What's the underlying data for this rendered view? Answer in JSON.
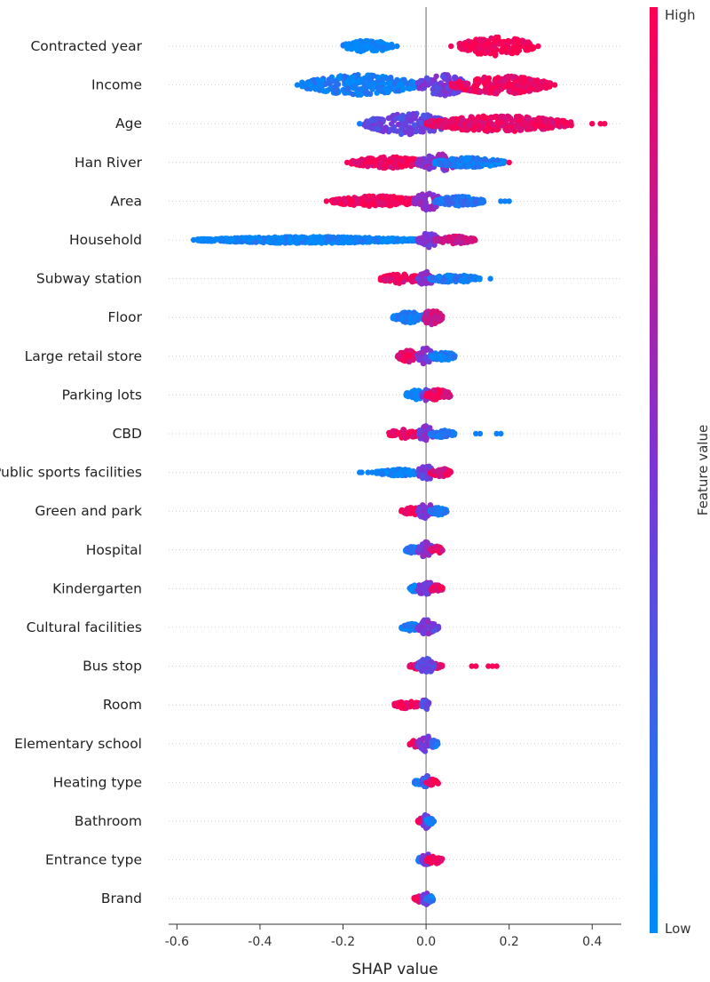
{
  "chart_data": {
    "type": "scatter",
    "title": "",
    "xlabel": "SHAP value",
    "ylabel": "",
    "xlim": [
      -0.62,
      0.47
    ],
    "x_ticks": [
      -0.6,
      -0.4,
      -0.2,
      0.0,
      0.2,
      0.4
    ],
    "x_tick_labels": [
      "-0.6",
      "-0.4",
      "-0.2",
      "0.0",
      "0.2",
      "0.4"
    ],
    "grid": false,
    "colorbar": {
      "label": "Feature value",
      "high_label": "High",
      "low_label": "Low",
      "high_color": "#ff0051",
      "low_color": "#008bfb"
    },
    "features": [
      {
        "name": "Contracted year",
        "segments": [
          [
            -0.2,
            -0.08,
            0.0,
            0.55
          ],
          [
            0.08,
            0.26,
            1.0,
            0.9
          ]
        ],
        "outliers_low": [
          -0.07
        ],
        "outliers_high": [
          0.06,
          0.27
        ]
      },
      {
        "name": "Income",
        "segments": [
          [
            -0.3,
            -0.02,
            0.08,
            0.95
          ],
          [
            -0.02,
            0.1,
            0.45,
            1.0
          ],
          [
            0.06,
            0.3,
            0.95,
            0.85
          ]
        ],
        "outliers_low": [
          -0.31,
          -0.29
        ],
        "outliers_high": [
          0.31
        ]
      },
      {
        "name": "Age",
        "segments": [
          [
            -0.15,
            0.06,
            0.4,
            1.0
          ],
          [
            0.0,
            0.35,
            0.92,
            0.75
          ]
        ],
        "outliers_low": [
          -0.16
        ],
        "outliers_high": [
          0.4,
          0.42,
          0.43
        ]
      },
      {
        "name": "Han River",
        "segments": [
          [
            -0.18,
            0.0,
            0.95,
            0.55
          ],
          [
            -0.02,
            0.08,
            0.55,
            0.8
          ],
          [
            0.02,
            0.19,
            0.08,
            0.45
          ]
        ],
        "outliers_low": [],
        "outliers_high": [
          -0.19,
          0.2
        ]
      },
      {
        "name": "Area",
        "segments": [
          [
            -0.23,
            -0.01,
            0.97,
            0.5
          ],
          [
            -0.03,
            0.04,
            0.6,
            0.85
          ],
          [
            0.02,
            0.14,
            0.15,
            0.45
          ]
        ],
        "outliers_low": [
          0.18,
          0.19,
          0.2
        ],
        "outliers_high": [
          -0.24
        ]
      },
      {
        "name": "Household",
        "segments": [
          [
            -0.55,
            -0.02,
            0.02,
            0.3
          ],
          [
            -0.02,
            0.03,
            0.5,
            0.7
          ],
          [
            0.02,
            0.12,
            0.8,
            0.35
          ]
        ],
        "outliers_low": [
          -0.56,
          -0.55,
          -0.53,
          -0.52
        ],
        "outliers_high": []
      },
      {
        "name": "Subway station",
        "segments": [
          [
            -0.11,
            -0.01,
            0.92,
            0.45
          ],
          [
            -0.02,
            0.02,
            0.5,
            0.7
          ],
          [
            0.01,
            0.13,
            0.1,
            0.35
          ]
        ],
        "outliers_low": [
          0.155
        ],
        "outliers_high": []
      },
      {
        "name": "Floor",
        "segments": [
          [
            -0.08,
            0.0,
            0.05,
            0.5
          ],
          [
            -0.01,
            0.04,
            0.8,
            0.7
          ]
        ],
        "outliers_low": [],
        "outliers_high": []
      },
      {
        "name": "Large retail store",
        "segments": [
          [
            -0.07,
            -0.01,
            0.92,
            0.55
          ],
          [
            -0.02,
            0.02,
            0.5,
            0.8
          ],
          [
            0.01,
            0.07,
            0.1,
            0.45
          ]
        ],
        "outliers_low": [],
        "outliers_high": []
      },
      {
        "name": "Parking lots",
        "segments": [
          [
            -0.05,
            0.0,
            0.05,
            0.45
          ],
          [
            -0.01,
            0.01,
            0.45,
            0.75
          ],
          [
            0.0,
            0.06,
            0.92,
            0.5
          ]
        ],
        "outliers_low": [],
        "outliers_high": []
      },
      {
        "name": "CBD",
        "segments": [
          [
            -0.09,
            -0.01,
            0.95,
            0.45
          ],
          [
            -0.02,
            0.02,
            0.5,
            0.75
          ],
          [
            0.01,
            0.07,
            0.15,
            0.35
          ]
        ],
        "outliers_low": [
          0.12,
          0.13,
          0.17,
          0.18
        ],
        "outliers_high": []
      },
      {
        "name": "Public sports facilities",
        "segments": [
          [
            -0.12,
            -0.01,
            0.05,
            0.3
          ],
          [
            -0.02,
            0.02,
            0.45,
            0.75
          ],
          [
            0.01,
            0.06,
            0.9,
            0.4
          ]
        ],
        "outliers_low": [
          -0.16,
          -0.155,
          -0.14,
          -0.13,
          -0.12
        ],
        "outliers_high": []
      },
      {
        "name": "Green and park",
        "segments": [
          [
            -0.06,
            -0.01,
            0.92,
            0.35
          ],
          [
            -0.02,
            0.02,
            0.5,
            0.75
          ],
          [
            0.01,
            0.05,
            0.1,
            0.35
          ]
        ],
        "outliers_low": [],
        "outliers_high": []
      },
      {
        "name": "Hospital",
        "segments": [
          [
            -0.05,
            -0.01,
            0.1,
            0.35
          ],
          [
            -0.02,
            0.02,
            0.5,
            0.75
          ],
          [
            0.01,
            0.04,
            0.9,
            0.35
          ]
        ],
        "outliers_low": [],
        "outliers_high": []
      },
      {
        "name": "Kindergarten",
        "segments": [
          [
            -0.04,
            -0.01,
            0.1,
            0.35
          ],
          [
            -0.02,
            0.02,
            0.5,
            0.75
          ],
          [
            0.01,
            0.04,
            0.9,
            0.35
          ]
        ],
        "outliers_low": [],
        "outliers_high": []
      },
      {
        "name": "Cultural facilities",
        "segments": [
          [
            -0.06,
            -0.01,
            0.1,
            0.35
          ],
          [
            -0.02,
            0.02,
            0.5,
            0.75
          ],
          [
            0.01,
            0.03,
            0.45,
            0.35
          ]
        ],
        "outliers_low": [],
        "outliers_high": []
      },
      {
        "name": "Bus stop",
        "segments": [
          [
            -0.04,
            0.04,
            0.9,
            0.35
          ],
          [
            -0.02,
            0.02,
            0.35,
            0.75
          ]
        ],
        "outliers_low": [],
        "outliers_high": [
          0.11,
          0.12,
          0.15,
          0.16,
          0.17
        ]
      },
      {
        "name": "Room",
        "segments": [
          [
            -0.08,
            -0.01,
            0.95,
            0.35
          ],
          [
            -0.01,
            0.01,
            0.35,
            0.75
          ]
        ],
        "outliers_low": [],
        "outliers_high": []
      },
      {
        "name": "Elementary school",
        "segments": [
          [
            -0.04,
            -0.01,
            0.9,
            0.35
          ],
          [
            -0.02,
            0.02,
            0.5,
            0.75
          ],
          [
            0.01,
            0.03,
            0.1,
            0.35
          ]
        ],
        "outliers_low": [],
        "outliers_high": []
      },
      {
        "name": "Heating type",
        "segments": [
          [
            -0.03,
            0.0,
            0.05,
            0.3
          ],
          [
            -0.01,
            0.01,
            0.3,
            0.7
          ],
          [
            0.0,
            0.03,
            0.95,
            0.3
          ]
        ],
        "outliers_low": [],
        "outliers_high": []
      },
      {
        "name": "Bathroom",
        "segments": [
          [
            -0.02,
            0.0,
            0.92,
            0.3
          ],
          [
            -0.01,
            0.01,
            0.5,
            0.7
          ],
          [
            0.0,
            0.02,
            0.1,
            0.3
          ]
        ],
        "outliers_low": [],
        "outliers_high": []
      },
      {
        "name": "Entrance type",
        "segments": [
          [
            -0.02,
            0.0,
            0.1,
            0.3
          ],
          [
            -0.01,
            0.01,
            0.5,
            0.7
          ],
          [
            0.0,
            0.04,
            0.95,
            0.35
          ]
        ],
        "outliers_low": [],
        "outliers_high": []
      },
      {
        "name": "Brand",
        "segments": [
          [
            -0.03,
            0.0,
            0.92,
            0.3
          ],
          [
            -0.01,
            0.01,
            0.5,
            0.7
          ],
          [
            0.0,
            0.02,
            0.1,
            0.3
          ]
        ],
        "outliers_low": [],
        "outliers_high": []
      }
    ]
  }
}
